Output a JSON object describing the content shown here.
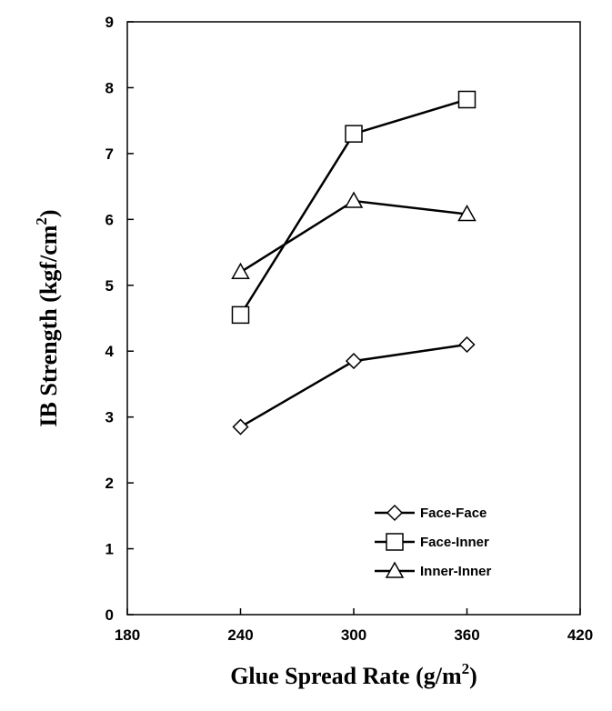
{
  "chart_data": {
    "type": "line",
    "xlabel": "Glue Spread Rate (g/m²)",
    "xlabel_main": "Glue Spread Rate (g/m",
    "xlabel_sup": "2",
    "xlabel_end": ")",
    "ylabel": "IB Strength (kgf/cm²)",
    "ylabel_main": "IB Strength (kgf/cm",
    "ylabel_sup": "2",
    "ylabel_end": ")",
    "xlim": [
      180,
      420
    ],
    "ylim": [
      0,
      9
    ],
    "x_ticks": [
      "180",
      "240",
      "300",
      "360",
      "420"
    ],
    "y_ticks": [
      "0",
      "1",
      "2",
      "3",
      "4",
      "5",
      "6",
      "7",
      "8",
      "9"
    ],
    "x": [
      240,
      300,
      360
    ],
    "grid": false,
    "legend_position": "bottom-right",
    "series": [
      {
        "name": "Face-Face",
        "marker": "diamond",
        "values": [
          2.85,
          3.85,
          4.1
        ]
      },
      {
        "name": "Face-Inner",
        "marker": "square",
        "values": [
          4.55,
          7.3,
          7.82
        ]
      },
      {
        "name": "Inner-Inner",
        "marker": "triangle",
        "values": [
          5.2,
          6.28,
          6.08
        ]
      }
    ]
  }
}
